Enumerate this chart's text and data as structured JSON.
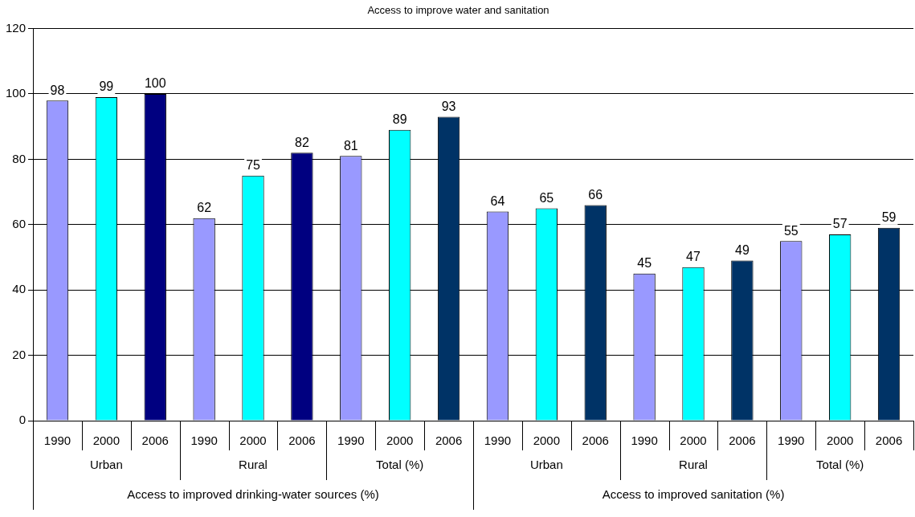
{
  "chart_data": {
    "type": "bar",
    "title": "Access to improve water and sanitation",
    "categories": [
      "1990",
      "2000",
      "2006",
      "1990",
      "2000",
      "2006",
      "1990",
      "2000",
      "2006",
      "1990",
      "2000",
      "2006",
      "1990",
      "2000",
      "2006",
      "1990",
      "2000",
      "2006"
    ],
    "values": [
      98,
      99,
      100,
      62,
      75,
      82,
      81,
      89,
      93,
      64,
      65,
      66,
      45,
      47,
      49,
      55,
      57,
      59
    ],
    "colors": [
      "#9999ff",
      "#00ffff",
      "#000080",
      "#9999ff",
      "#00ffff",
      "#000080",
      "#9999ff",
      "#00ffff",
      "#003366",
      "#9999ff",
      "#00ffff",
      "#003366",
      "#9999ff",
      "#00ffff",
      "#003366",
      "#9999ff",
      "#00ffff",
      "#003366"
    ],
    "ylim": [
      0,
      120
    ],
    "yticks": [
      0,
      20,
      40,
      60,
      80,
      100,
      120
    ],
    "grid": "y",
    "legend": false,
    "data_labels": true,
    "annotations": [
      "Urban",
      "Rural",
      "Total (%)",
      "Urban",
      "Rural",
      "Total (%)",
      "Access to improved drinking-water sources (%)",
      "Access to improved sanitation (%)"
    ]
  }
}
